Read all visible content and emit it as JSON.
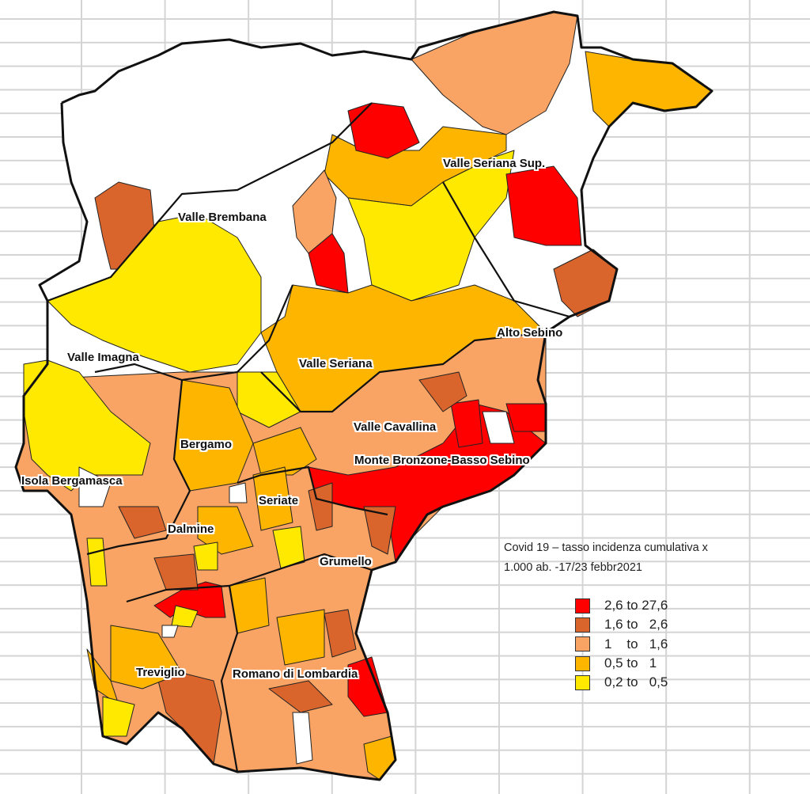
{
  "map_title": {
    "line1": "Covid 19 – tasso incidenza cumulativa  x",
    "line2": "1.000 ab. -17/23 febbr2021"
  },
  "legend": [
    {
      "label": "2,6 to 27,6",
      "color": "#ff0000"
    },
    {
      "label": "1,6 to   2,6",
      "color": "#d9652d"
    },
    {
      "label": "1    to   1,6",
      "color": "#f9a464"
    },
    {
      "label": "0,5 to   1",
      "color": "#fdb500"
    },
    {
      "label": "0,2 to   0,5",
      "color": "#ffe900"
    }
  ],
  "districts": {
    "valle_seriana_sup": "Valle Seriana Sup.",
    "valle_brembana": "Valle Brembana",
    "valle_imagna": "Valle Imagna",
    "alto_sebino": "Alto Sebino",
    "valle_seriana": "Valle Seriana",
    "valle_cavallina": "Valle Cavallina",
    "monte_bronzone": "Monte Bronzone-Basso Sebino",
    "bergamo": "Bergamo",
    "isola_bergamasca": "Isola Bergamasca",
    "seriate": "Seriate",
    "dalmine": "Dalmine",
    "grumello": "Grumello",
    "treviglio": "Treviglio",
    "romano": "Romano di Lombardia"
  }
}
